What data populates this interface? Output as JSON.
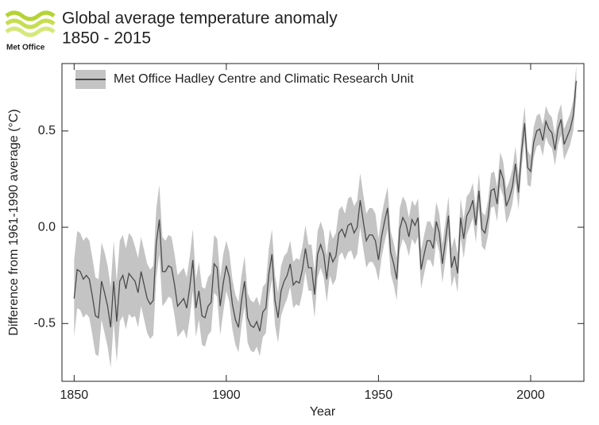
{
  "logo": {
    "text": "Met Office"
  },
  "chart_data": {
    "type": "line",
    "title": "Global average temperature anomaly",
    "subtitle": "1850 - 2015",
    "x_label": "Year",
    "y_label": "Difference from 1961-1990 average (°C)",
    "xlim": [
      1846,
      2017.5
    ],
    "ylim": [
      -0.8,
      0.85
    ],
    "xticks": [
      1850,
      1900,
      1950,
      2000
    ],
    "yticks": [
      -0.5,
      {
        "value": 0,
        "label": "0.0"
      },
      0.5
    ],
    "legend": "top-left",
    "x": [
      1850,
      1851,
      1852,
      1853,
      1854,
      1855,
      1856,
      1857,
      1858,
      1859,
      1860,
      1861,
      1862,
      1863,
      1864,
      1865,
      1866,
      1867,
      1868,
      1869,
      1870,
      1871,
      1872,
      1873,
      1874,
      1875,
      1876,
      1877,
      1878,
      1879,
      1880,
      1881,
      1882,
      1883,
      1884,
      1885,
      1886,
      1887,
      1888,
      1889,
      1890,
      1891,
      1892,
      1893,
      1894,
      1895,
      1896,
      1897,
      1898,
      1899,
      1900,
      1901,
      1902,
      1903,
      1904,
      1905,
      1906,
      1907,
      1908,
      1909,
      1910,
      1911,
      1912,
      1913,
      1914,
      1915,
      1916,
      1917,
      1918,
      1919,
      1920,
      1921,
      1922,
      1923,
      1924,
      1925,
      1926,
      1927,
      1928,
      1929,
      1930,
      1931,
      1932,
      1933,
      1934,
      1935,
      1936,
      1937,
      1938,
      1939,
      1940,
      1941,
      1942,
      1943,
      1944,
      1945,
      1946,
      1947,
      1948,
      1949,
      1950,
      1951,
      1952,
      1953,
      1954,
      1955,
      1956,
      1957,
      1958,
      1959,
      1960,
      1961,
      1962,
      1963,
      1964,
      1965,
      1966,
      1967,
      1968,
      1969,
      1970,
      1971,
      1972,
      1973,
      1974,
      1975,
      1976,
      1977,
      1978,
      1979,
      1980,
      1981,
      1982,
      1983,
      1984,
      1985,
      1986,
      1987,
      1988,
      1989,
      1990,
      1991,
      1992,
      1993,
      1994,
      1995,
      1996,
      1997,
      1998,
      1999,
      2000,
      2001,
      2002,
      2003,
      2004,
      2005,
      2006,
      2007,
      2008,
      2009,
      2010,
      2011,
      2012,
      2013,
      2014,
      2015
    ],
    "series": [
      {
        "name": "Met Office Hadley Centre and Climatic Research Unit",
        "color": "#4a4a4a",
        "band_color": "#c4c4c4",
        "values": [
          -0.37,
          -0.22,
          -0.23,
          -0.27,
          -0.25,
          -0.27,
          -0.36,
          -0.46,
          -0.47,
          -0.28,
          -0.34,
          -0.41,
          -0.52,
          -0.28,
          -0.49,
          -0.28,
          -0.25,
          -0.32,
          -0.24,
          -0.26,
          -0.28,
          -0.34,
          -0.23,
          -0.3,
          -0.37,
          -0.4,
          -0.38,
          -0.08,
          0.04,
          -0.23,
          -0.23,
          -0.2,
          -0.21,
          -0.3,
          -0.41,
          -0.39,
          -0.37,
          -0.42,
          -0.31,
          -0.17,
          -0.42,
          -0.33,
          -0.46,
          -0.47,
          -0.41,
          -0.39,
          -0.19,
          -0.21,
          -0.41,
          -0.29,
          -0.2,
          -0.26,
          -0.4,
          -0.48,
          -0.52,
          -0.38,
          -0.28,
          -0.47,
          -0.51,
          -0.52,
          -0.49,
          -0.54,
          -0.44,
          -0.42,
          -0.24,
          -0.14,
          -0.38,
          -0.47,
          -0.33,
          -0.28,
          -0.25,
          -0.19,
          -0.3,
          -0.28,
          -0.29,
          -0.22,
          -0.11,
          -0.21,
          -0.21,
          -0.35,
          -0.14,
          -0.09,
          -0.14,
          -0.27,
          -0.13,
          -0.18,
          -0.15,
          -0.03,
          -0.01,
          -0.05,
          0.01,
          0.02,
          -0.03,
          0,
          0.14,
          0.03,
          -0.07,
          -0.04,
          -0.04,
          -0.07,
          -0.17,
          -0.05,
          0.03,
          0.1,
          -0.13,
          -0.19,
          -0.27,
          -0.01,
          0.05,
          0.02,
          -0.05,
          0.04,
          0.01,
          0.05,
          -0.22,
          -0.14,
          -0.07,
          -0.07,
          -0.11,
          0.03,
          -0.03,
          -0.19,
          -0.07,
          0.06,
          -0.21,
          -0.15,
          -0.24,
          0.05,
          -0.06,
          0.06,
          0.09,
          0.14,
          0.01,
          0.19,
          -0.01,
          -0.03,
          0.05,
          0.19,
          0.2,
          0.12,
          0.3,
          0.25,
          0.11,
          0.15,
          0.21,
          0.33,
          0.18,
          0.39,
          0.54,
          0.31,
          0.29,
          0.44,
          0.5,
          0.51,
          0.45,
          0.55,
          0.51,
          0.49,
          0.4,
          0.51,
          0.56,
          0.43,
          0.47,
          0.51,
          0.58,
          0.76
        ],
        "errors": [
          0.2,
          0.2,
          0.2,
          0.2,
          0.2,
          0.2,
          0.2,
          0.2,
          0.2,
          0.2,
          0.21,
          0.21,
          0.21,
          0.21,
          0.21,
          0.21,
          0.21,
          0.21,
          0.21,
          0.21,
          0.18,
          0.18,
          0.18,
          0.18,
          0.18,
          0.18,
          0.18,
          0.18,
          0.18,
          0.18,
          0.16,
          0.16,
          0.16,
          0.16,
          0.16,
          0.16,
          0.16,
          0.16,
          0.16,
          0.16,
          0.15,
          0.15,
          0.15,
          0.15,
          0.15,
          0.15,
          0.15,
          0.15,
          0.15,
          0.15,
          0.13,
          0.13,
          0.13,
          0.13,
          0.13,
          0.13,
          0.13,
          0.13,
          0.13,
          0.13,
          0.13,
          0.13,
          0.13,
          0.13,
          0.13,
          0.13,
          0.13,
          0.13,
          0.13,
          0.13,
          0.12,
          0.12,
          0.12,
          0.12,
          0.12,
          0.12,
          0.12,
          0.12,
          0.12,
          0.12,
          0.12,
          0.12,
          0.12,
          0.12,
          0.12,
          0.12,
          0.12,
          0.12,
          0.12,
          0.12,
          0.14,
          0.14,
          0.14,
          0.14,
          0.14,
          0.14,
          0.14,
          0.14,
          0.14,
          0.14,
          0.11,
          0.11,
          0.11,
          0.11,
          0.11,
          0.11,
          0.11,
          0.11,
          0.11,
          0.11,
          0.1,
          0.1,
          0.1,
          0.1,
          0.1,
          0.1,
          0.1,
          0.1,
          0.1,
          0.1,
          0.1,
          0.1,
          0.1,
          0.1,
          0.1,
          0.1,
          0.1,
          0.1,
          0.1,
          0.1,
          0.09,
          0.09,
          0.09,
          0.09,
          0.09,
          0.09,
          0.09,
          0.09,
          0.09,
          0.09,
          0.09,
          0.09,
          0.09,
          0.09,
          0.09,
          0.09,
          0.09,
          0.09,
          0.09,
          0.09,
          0.08,
          0.08,
          0.08,
          0.08,
          0.08,
          0.08,
          0.08,
          0.08,
          0.08,
          0.08,
          0.08,
          0.08,
          0.08,
          0.08,
          0.08,
          0.08
        ]
      }
    ]
  }
}
